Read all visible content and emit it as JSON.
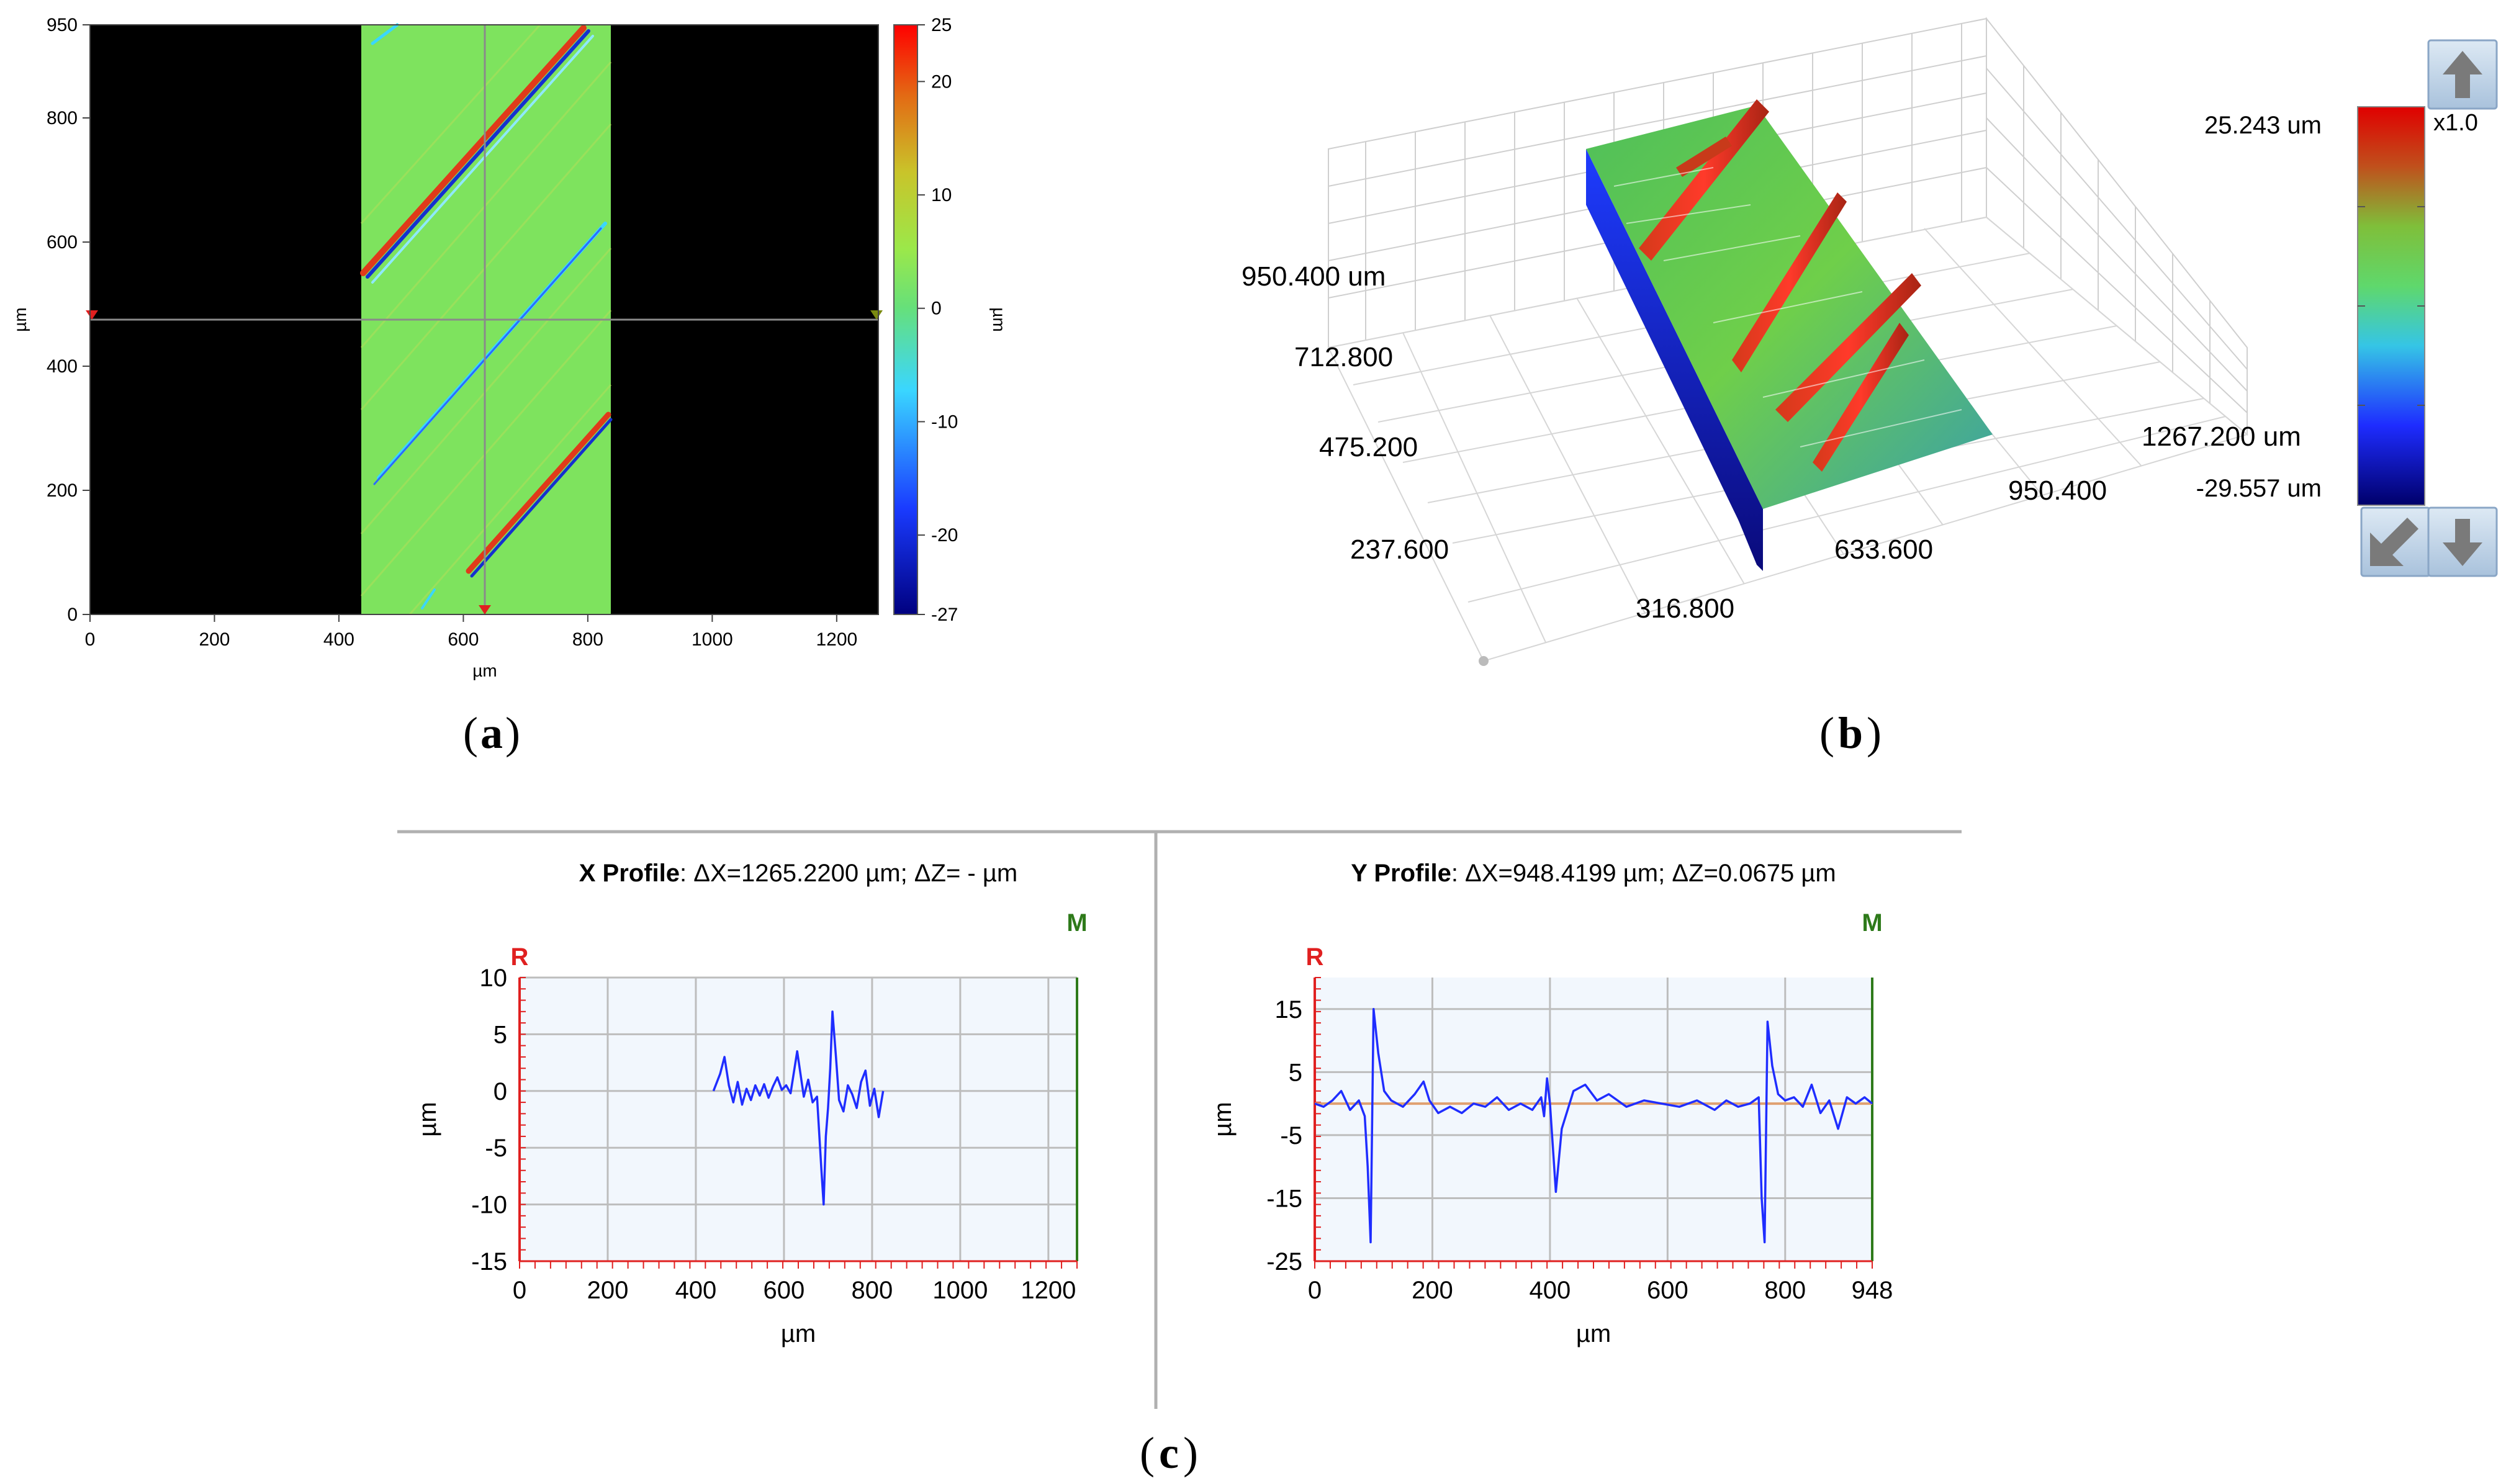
{
  "panel_a": {
    "label": "a",
    "x_axis": {
      "label": "µm",
      "range": [
        0,
        1267
      ],
      "ticks": [
        0,
        200,
        400,
        600,
        800,
        1000,
        1200
      ]
    },
    "y_axis": {
      "label": "µm",
      "range": [
        0,
        950
      ],
      "ticks": [
        0,
        200,
        400,
        600,
        800,
        950
      ]
    },
    "colorbar": {
      "label": "µm",
      "range": [
        -27,
        25
      ],
      "ticks": [
        25,
        20,
        10,
        0,
        -10,
        -20,
        -27
      ]
    },
    "measured_strip_x": [
      437,
      837
    ],
    "crosshair": {
      "x": 637,
      "y": 475
    }
  },
  "panel_b": {
    "label": "b",
    "axis_labels": [
      "950.400 um",
      "712.800",
      "475.200",
      "237.600",
      "316.800",
      "633.600",
      "950.400",
      "1267.200 um"
    ],
    "colorbar_max": "25.243 um",
    "colorbar_min": "-29.557 um",
    "scale": "x1.0"
  },
  "panel_c": {
    "label": "c"
  },
  "chart_data": [
    {
      "type": "line",
      "title_bold": "X Profile",
      "title_rest": ": ΔX=1265.2200 µm; ΔZ= -  µm",
      "marker_r": "R",
      "marker_m": "M",
      "xlabel": "µm",
      "ylabel": "µm",
      "xlim": [
        0,
        1265
      ],
      "ylim": [
        -15,
        10
      ],
      "xticks": [
        0,
        200,
        400,
        600,
        800,
        1000,
        1200
      ],
      "yticks": [
        10,
        5,
        0,
        -5,
        -10,
        -15
      ],
      "series": [
        {
          "name": "X profile",
          "x": [
            440,
            455,
            465,
            475,
            485,
            495,
            505,
            515,
            525,
            535,
            545,
            555,
            565,
            575,
            585,
            595,
            605,
            615,
            630,
            645,
            655,
            665,
            675,
            685,
            690,
            695,
            700,
            705,
            710,
            718,
            725,
            735,
            745,
            755,
            765,
            775,
            785,
            795,
            805,
            815,
            825
          ],
          "values": [
            0,
            1.5,
            3,
            0.5,
            -1,
            0.8,
            -1.2,
            0.2,
            -0.8,
            0.5,
            -0.4,
            0.6,
            -0.6,
            0.4,
            1.2,
            0.1,
            0.5,
            -0.2,
            3.5,
            -0.5,
            1,
            -1,
            -0.5,
            -7,
            -10,
            -4,
            -1.5,
            2,
            7,
            3,
            -0.8,
            -1.8,
            0.5,
            -0.3,
            -1.5,
            0.8,
            1.8,
            -1.3,
            0.2,
            -2.3,
            0
          ]
        }
      ]
    },
    {
      "type": "line",
      "title_bold": "Y Profile",
      "title_rest": ": ΔX=948.4199 µm; ΔZ=0.0675 µm",
      "marker_r": "R",
      "marker_m": "M",
      "xlabel": "µm",
      "ylabel": "µm",
      "xlim": [
        0,
        948
      ],
      "ylim": [
        -25,
        20
      ],
      "xticks": [
        0,
        200,
        400,
        600,
        800,
        948
      ],
      "yticks": [
        15,
        5,
        -5,
        -15,
        -25
      ],
      "series": [
        {
          "name": "Y profile",
          "x": [
            0,
            15,
            30,
            45,
            60,
            75,
            85,
            90,
            95,
            100,
            108,
            118,
            130,
            150,
            170,
            185,
            195,
            210,
            230,
            250,
            270,
            290,
            310,
            330,
            350,
            370,
            385,
            390,
            395,
            400,
            405,
            410,
            420,
            440,
            460,
            480,
            500,
            530,
            560,
            590,
            620,
            650,
            680,
            700,
            720,
            740,
            755,
            760,
            765,
            770,
            778,
            788,
            800,
            815,
            830,
            845,
            860,
            875,
            890,
            905,
            920,
            935,
            948
          ],
          "values": [
            0,
            -0.5,
            0.5,
            2,
            -1,
            0.5,
            -2,
            -10,
            -22,
            15,
            8,
            2,
            0.5,
            -0.5,
            1.5,
            3.5,
            0.5,
            -1.5,
            -0.5,
            -1.5,
            0,
            -0.5,
            1,
            -1,
            0,
            -1,
            1,
            -2,
            4,
            0,
            -7,
            -14,
            -4,
            2,
            3,
            0.5,
            1.5,
            -0.5,
            0.5,
            0,
            -0.5,
            0.5,
            -1,
            0.5,
            -0.5,
            0,
            1,
            -15,
            -22,
            13,
            6,
            1.5,
            0.5,
            1,
            -0.5,
            3,
            -1.5,
            0.5,
            -4,
            1,
            0,
            1,
            0
          ]
        }
      ]
    }
  ]
}
